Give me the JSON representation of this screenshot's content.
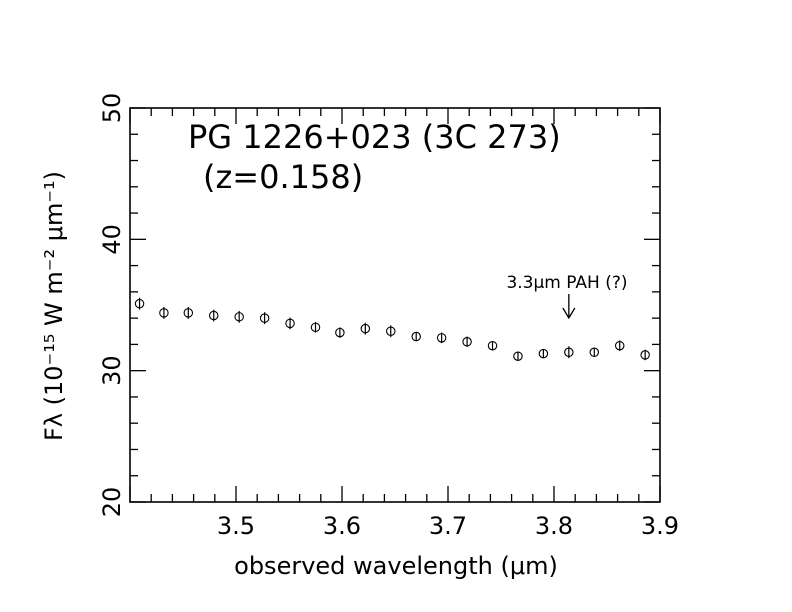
{
  "chart_data": {
    "type": "scatter",
    "title": "PG 1226+023 (3C 273)",
    "subtitle": "(z=0.158)",
    "xlabel": "observed wavelength (μm)",
    "ylabel": "Fλ (10⁻¹⁵ W m⁻² μm⁻¹)",
    "xlim": [
      3.4,
      3.9
    ],
    "ylim": [
      20,
      50
    ],
    "xticks": [
      3.5,
      3.6,
      3.7,
      3.8,
      3.9
    ],
    "xtick_labels": [
      "3.5",
      "3.6",
      "3.7",
      "3.8",
      "3.9"
    ],
    "yticks": [
      20,
      30,
      40,
      50
    ],
    "ytick_labels": [
      "20",
      "30",
      "40",
      "50"
    ],
    "grid": false,
    "legend": "none",
    "series": [
      {
        "x": [
          3.409,
          3.432,
          3.455,
          3.479,
          3.503,
          3.527,
          3.551,
          3.575,
          3.598,
          3.622,
          3.646,
          3.67,
          3.694,
          3.718,
          3.742,
          3.766,
          3.79,
          3.814,
          3.838,
          3.862,
          3.886
        ],
        "y": [
          35.1,
          34.4,
          34.4,
          34.2,
          34.1,
          34.0,
          33.6,
          33.3,
          32.9,
          33.2,
          33.0,
          32.6,
          32.5,
          32.2,
          31.9,
          31.1,
          31.3,
          31.4,
          31.4,
          31.9,
          31.2
        ],
        "yerr": [
          0.45,
          0.45,
          0.45,
          0.45,
          0.45,
          0.45,
          0.45,
          0.4,
          0.4,
          0.45,
          0.45,
          0.35,
          0.4,
          0.4,
          0.35,
          0.35,
          0.35,
          0.45,
          0.35,
          0.4,
          0.4
        ]
      }
    ],
    "annotations": [
      {
        "text": "3.3μm PAH (?)",
        "x": 3.814,
        "y": 34.5,
        "arrow": "down"
      }
    ]
  }
}
